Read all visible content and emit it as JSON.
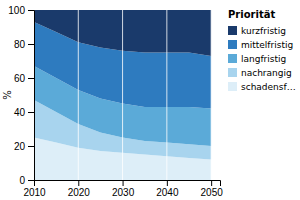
{
  "chart_data": {
    "type": "area",
    "stacked": true,
    "ylabel": "%",
    "legend_title": "Priorität",
    "legend": "right",
    "grid": true,
    "x": [
      2010,
      2015,
      2020,
      2025,
      2030,
      2035,
      2040,
      2045,
      2050
    ],
    "xlim": [
      2010,
      2052
    ],
    "xticks": [
      2010,
      2020,
      2030,
      2040,
      2050
    ],
    "ylim": [
      0,
      100
    ],
    "yticks": [
      0,
      20,
      40,
      60,
      80,
      100
    ],
    "series": [
      {
        "name": "schadensf…",
        "color": "#ddeef8",
        "values": [
          25,
          22,
          19,
          17,
          16,
          15,
          14,
          13,
          12
        ]
      },
      {
        "name": "nachrangig",
        "color": "#a8d4ee",
        "values": [
          22,
          18,
          14,
          11,
          9,
          8,
          8,
          8,
          8
        ]
      },
      {
        "name": "langfristig",
        "color": "#5baad8",
        "values": [
          20,
          20,
          20,
          20,
          20,
          20,
          21,
          22,
          22
        ]
      },
      {
        "name": "mittelfristig",
        "color": "#2e7bbf",
        "values": [
          26,
          27,
          28,
          30,
          31,
          32,
          32,
          32,
          31
        ]
      },
      {
        "name": "kurzfristig",
        "color": "#1a3a6b",
        "values": [
          7,
          13,
          19,
          22,
          24,
          25,
          25,
          25,
          27
        ]
      }
    ]
  }
}
